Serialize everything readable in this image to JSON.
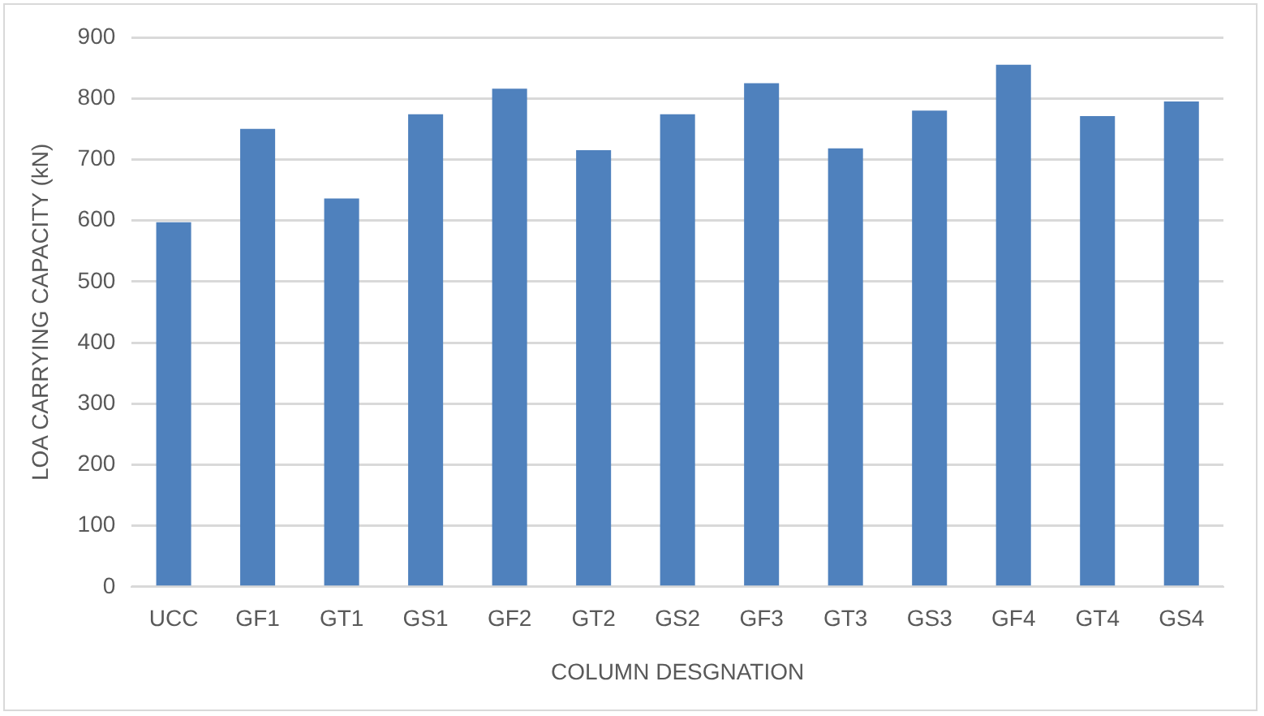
{
  "chart_data": {
    "type": "bar",
    "xlabel": "COLUMN DESGNATION",
    "ylabel": "LOA CARRYING CAPACITY (kN)",
    "categories": [
      "UCC",
      "GF1",
      "GT1",
      "GS1",
      "GF2",
      "GT2",
      "GS2",
      "GF3",
      "GT3",
      "GS3",
      "GF4",
      "GT4",
      "GS4"
    ],
    "values": [
      597,
      750,
      636,
      774,
      816,
      715,
      774,
      825,
      718,
      780,
      855,
      771,
      795
    ],
    "color": "#4f81bd",
    "ylim": [
      0,
      900
    ],
    "yticks": [
      0,
      100,
      200,
      300,
      400,
      500,
      600,
      700,
      800,
      900
    ],
    "grid": "y",
    "legend": false
  }
}
